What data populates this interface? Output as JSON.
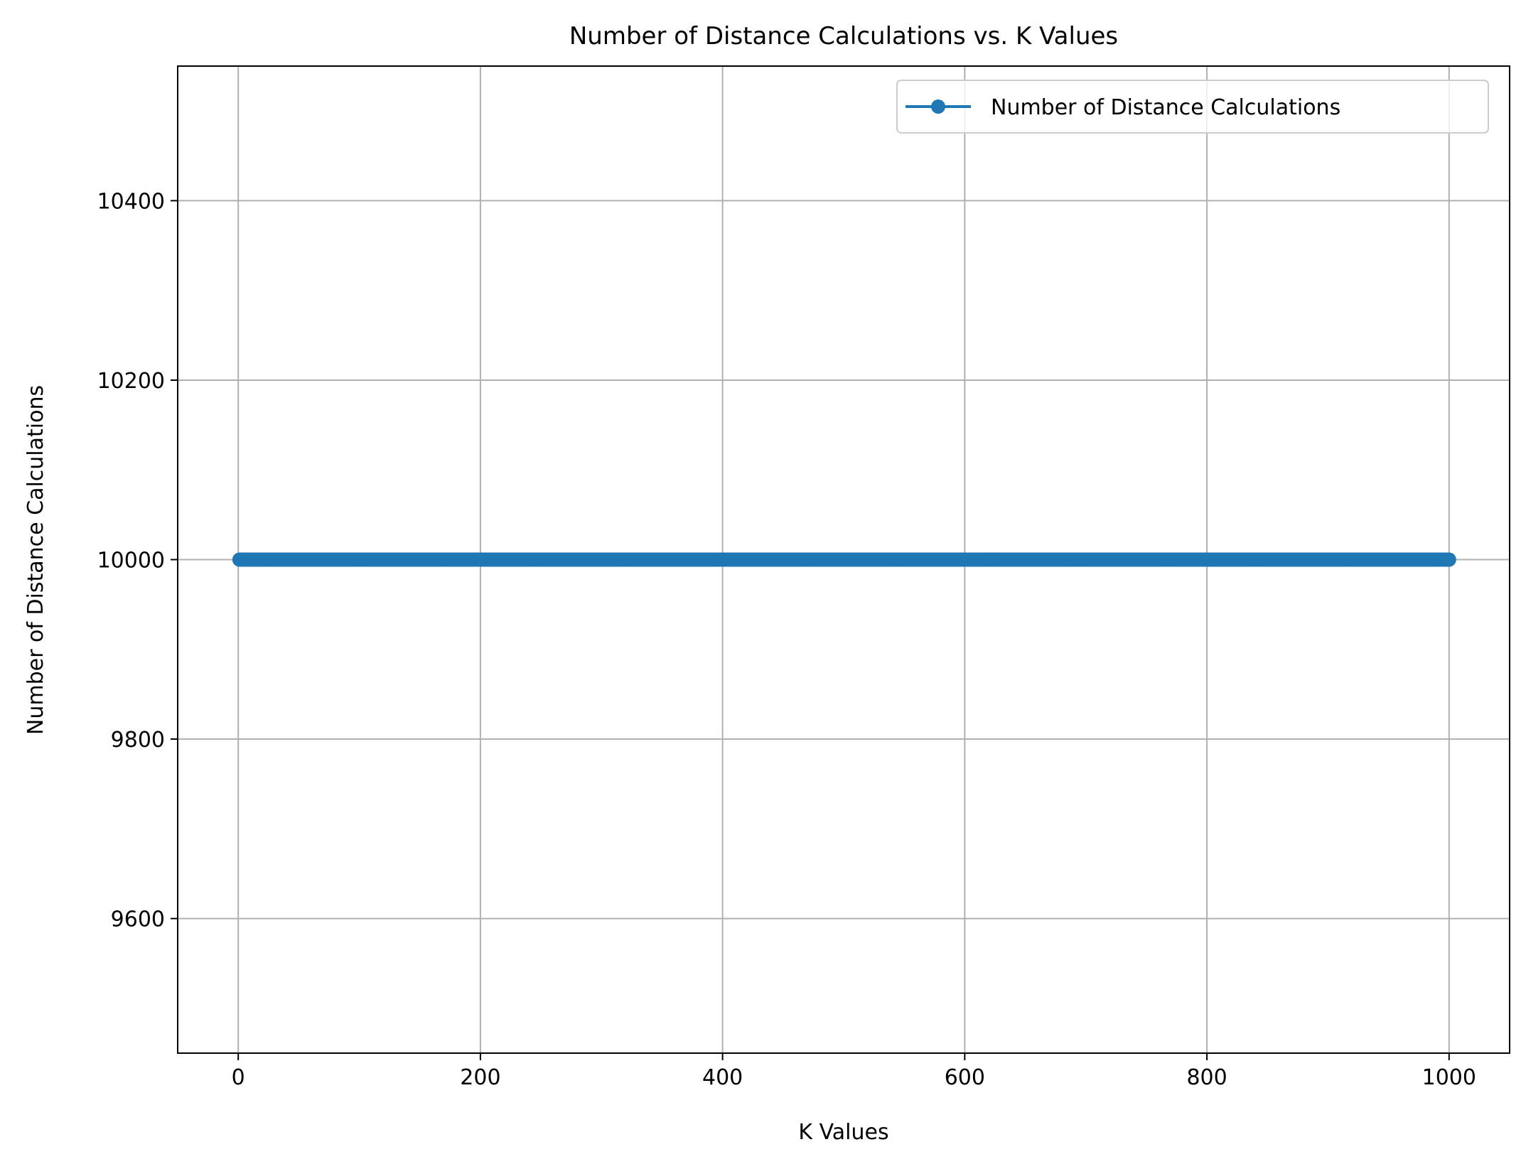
{
  "chart_data": {
    "type": "line",
    "title": "Number of Distance Calculations vs. K Values",
    "xlabel": "K Values",
    "ylabel": "Number of Distance Calculations",
    "xlim": [
      -50,
      1050
    ],
    "ylim": [
      9450,
      10550
    ],
    "xticks": [
      0,
      200,
      400,
      600,
      800,
      1000
    ],
    "yticks": [
      9600,
      9800,
      10000,
      10200,
      10400
    ],
    "x_tick_labels": [
      "0",
      "200",
      "400",
      "600",
      "800",
      "1000"
    ],
    "y_tick_labels": [
      "9600",
      "9800",
      "10000",
      "10200",
      "10400"
    ],
    "grid": true,
    "legend_position": "top-right",
    "series": [
      {
        "name": "Number of Distance Calculations",
        "color": "#1f77b4",
        "marker": "circle",
        "x_range": [
          1,
          1000
        ],
        "x_step": 1,
        "y_constant": 10000
      }
    ]
  }
}
